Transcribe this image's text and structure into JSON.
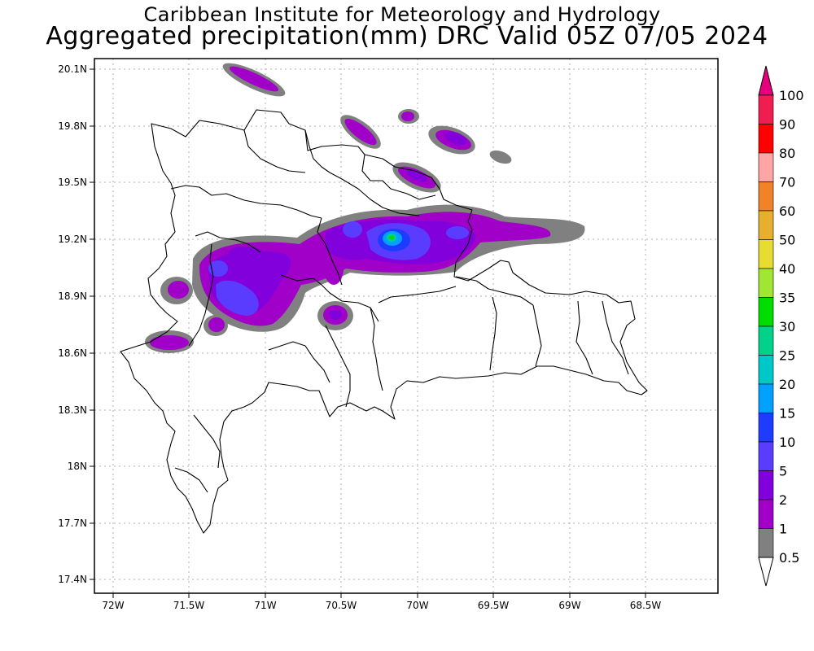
{
  "title": {
    "line1": "Caribbean Institute for Meteorology and Hydrology",
    "line2": "Aggregated precipitation(mm) DRC Valid 05Z 07/05 2024"
  },
  "axes": {
    "lon_ticks": [
      "72W",
      "71.5W",
      "71W",
      "70.5W",
      "70W",
      "69.5W",
      "69W",
      "68.5W"
    ],
    "lat_ticks": [
      "20.1N",
      "19.8N",
      "19.5N",
      "19.2N",
      "18.9N",
      "18.6N",
      "18.3N",
      "18N",
      "17.7N",
      "17.4N"
    ]
  },
  "colorbar": {
    "labels": [
      "100",
      "90",
      "80",
      "70",
      "60",
      "50",
      "40",
      "35",
      "30",
      "25",
      "20",
      "15",
      "10",
      "5",
      "2",
      "1",
      "0.5"
    ],
    "colors": [
      "#f01e50",
      "#ff0000",
      "#ffa5a5",
      "#f08228",
      "#e6af2d",
      "#e6dc32",
      "#a0e632",
      "#00dc00",
      "#00d28c",
      "#00c8c8",
      "#00a0ff",
      "#1e3cff",
      "#5a3cff",
      "#8200dc",
      "#a000c8",
      "#808080"
    ],
    "top_arrow_color": "#e6007d"
  },
  "legend_colors": {
    "gray": "#808080",
    "purple": "#a000c8",
    "violet": "#8200dc",
    "blue": "#5a3cff",
    "darkblue": "#1e3cff",
    "cyan": "#00a0ff",
    "green": "#00dc00"
  }
}
